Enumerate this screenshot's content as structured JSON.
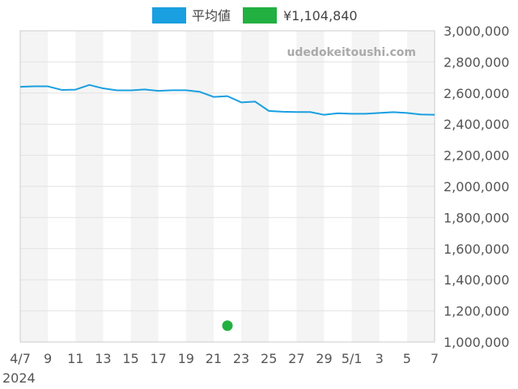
{
  "chart_data": {
    "type": "line",
    "title": "",
    "xlabel": "",
    "ylabel": "",
    "watermark": "udedokeitoushi.com",
    "x_ticks": [
      "4/7",
      "9",
      "11",
      "13",
      "15",
      "17",
      "19",
      "21",
      "23",
      "25",
      "27",
      "29",
      "5/1",
      "3",
      "5",
      "7"
    ],
    "x_year_label": "2024",
    "y_ticks": [
      "3,000,000",
      "2,800,000",
      "2,600,000",
      "2,400,000",
      "2,200,000",
      "2,000,000",
      "1,800,000",
      "1,600,000",
      "1,400,000",
      "1,200,000",
      "1,000,000"
    ],
    "ylim": [
      1000000,
      3000000
    ],
    "grid": true,
    "legend_position": "top-center",
    "series": [
      {
        "name": "平均値",
        "color": "#1a9fe0",
        "x": [
          "2024-04-07",
          "2024-04-08",
          "2024-04-09",
          "2024-04-10",
          "2024-04-11",
          "2024-04-12",
          "2024-04-13",
          "2024-04-14",
          "2024-04-15",
          "2024-04-16",
          "2024-04-17",
          "2024-04-18",
          "2024-04-19",
          "2024-04-20",
          "2024-04-21",
          "2024-04-22",
          "2024-04-23",
          "2024-04-24",
          "2024-04-25",
          "2024-04-26",
          "2024-04-27",
          "2024-04-28",
          "2024-04-29",
          "2024-04-30",
          "2024-05-01",
          "2024-05-02",
          "2024-05-03",
          "2024-05-04",
          "2024-05-05",
          "2024-05-06",
          "2024-05-07"
        ],
        "values": [
          2640000,
          2643000,
          2643000,
          2620000,
          2622000,
          2652000,
          2630000,
          2617000,
          2617000,
          2623000,
          2614000,
          2618000,
          2618000,
          2608000,
          2575000,
          2580000,
          2540000,
          2545000,
          2485000,
          2480000,
          2478000,
          2478000,
          2460000,
          2470000,
          2467000,
          2467000,
          2472000,
          2477000,
          2472000,
          2462000,
          2460000
        ]
      },
      {
        "name": "¥1,104,840",
        "color": "#22b040",
        "type": "scatter",
        "x": [
          "2024-04-22"
        ],
        "values": [
          1104840
        ]
      }
    ]
  }
}
